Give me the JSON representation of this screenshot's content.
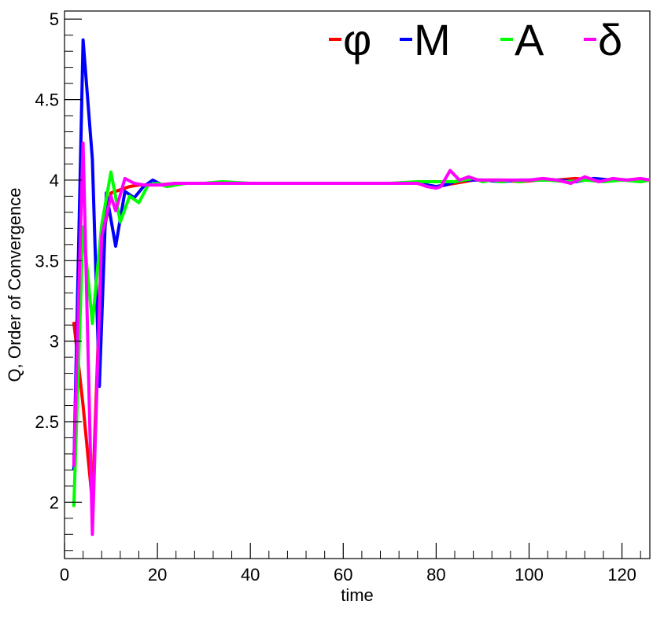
{
  "chart_data": {
    "type": "line",
    "title": "",
    "xlabel": "time",
    "ylabel": "Q, Order of Convergence",
    "xlim": [
      0,
      126
    ],
    "ylim": [
      1.65,
      5.05
    ],
    "xticks": [
      0,
      20,
      40,
      60,
      80,
      100,
      120
    ],
    "yticks": [
      2,
      2.5,
      3,
      3.5,
      4,
      4.5,
      5
    ],
    "xtick_labels": [
      "0",
      "20",
      "40",
      "60",
      "80",
      "100",
      "120"
    ],
    "ytick_labels": [
      "2",
      "2.5",
      "3",
      "3.5",
      "4",
      "4.5",
      "5"
    ],
    "grid": false,
    "legend_position": "top-right",
    "series": [
      {
        "name": "φ",
        "color": "#ff0000",
        "x": [
          2,
          4,
          6,
          8,
          10,
          12,
          14,
          16,
          18,
          20,
          24,
          28,
          32,
          36,
          40,
          50,
          60,
          70,
          76,
          78,
          80,
          82,
          84,
          86,
          88,
          90,
          94,
          98,
          102,
          106,
          110,
          114,
          118,
          122,
          126
        ],
        "y": [
          3.12,
          2.6,
          2.0,
          3.6,
          3.92,
          3.94,
          3.96,
          3.97,
          3.97,
          3.97,
          3.98,
          3.98,
          3.98,
          3.98,
          3.98,
          3.98,
          3.98,
          3.98,
          3.98,
          3.97,
          3.96,
          3.97,
          3.98,
          3.99,
          4.0,
          4.0,
          4.0,
          3.99,
          4.0,
          4.0,
          4.01,
          4.0,
          4.0,
          4.0,
          4.0
        ]
      },
      {
        "name": "M",
        "color": "#0000ff",
        "x": [
          2,
          4,
          6,
          7.5,
          9,
          11,
          13,
          15,
          17,
          19,
          21,
          24,
          28,
          32,
          36,
          40,
          50,
          60,
          70,
          76,
          78,
          80,
          82,
          84,
          86,
          88,
          90,
          94,
          98,
          102,
          106,
          110,
          114,
          118,
          122,
          126
        ],
        "y": [
          2.2,
          4.87,
          4.13,
          2.72,
          3.92,
          3.59,
          3.93,
          3.89,
          3.96,
          4.0,
          3.97,
          3.98,
          3.98,
          3.98,
          3.98,
          3.98,
          3.98,
          3.98,
          3.98,
          3.98,
          3.97,
          3.96,
          3.97,
          3.99,
          4.0,
          4.0,
          4.0,
          3.99,
          4.0,
          4.0,
          4.0,
          3.99,
          4.01,
          4.0,
          4.0,
          4.0
        ]
      },
      {
        "name": "A",
        "color": "#00ff00",
        "x": [
          2,
          4,
          6,
          8,
          10,
          12,
          14,
          16,
          18,
          20,
          22,
          26,
          30,
          34,
          40,
          50,
          60,
          70,
          76,
          80,
          84,
          86,
          88,
          90,
          92,
          94,
          96,
          98,
          100,
          104,
          108,
          112,
          116,
          120,
          124,
          126
        ],
        "y": [
          1.97,
          3.71,
          3.11,
          3.72,
          4.05,
          3.74,
          3.9,
          3.86,
          3.97,
          3.98,
          3.96,
          3.98,
          3.98,
          3.99,
          3.98,
          3.98,
          3.98,
          3.98,
          3.99,
          3.99,
          3.99,
          4.0,
          4.01,
          3.99,
          4.0,
          3.99,
          4.0,
          3.99,
          4.0,
          4.0,
          3.99,
          4.0,
          3.99,
          4.0,
          3.99,
          4.0
        ]
      },
      {
        "name": "δ",
        "color": "#ff00ff",
        "x": [
          2,
          4,
          6,
          8,
          10,
          11,
          13,
          15,
          17,
          19,
          21,
          24,
          28,
          32,
          36,
          40,
          50,
          60,
          70,
          76,
          78,
          80,
          81,
          83,
          85,
          87,
          89,
          91,
          94,
          97,
          100,
          103,
          106,
          109,
          112,
          115,
          118,
          121,
          124,
          126
        ],
        "y": [
          2.22,
          4.23,
          1.8,
          3.65,
          3.9,
          3.81,
          4.01,
          3.98,
          3.97,
          3.97,
          3.97,
          3.98,
          3.98,
          3.98,
          3.98,
          3.98,
          3.98,
          3.98,
          3.98,
          3.98,
          3.96,
          3.95,
          3.96,
          4.06,
          4.0,
          4.02,
          4.0,
          4.0,
          4.0,
          4.0,
          4.0,
          4.01,
          4.0,
          3.98,
          4.02,
          3.99,
          4.01,
          4.0,
          4.01,
          4.0
        ]
      }
    ]
  }
}
